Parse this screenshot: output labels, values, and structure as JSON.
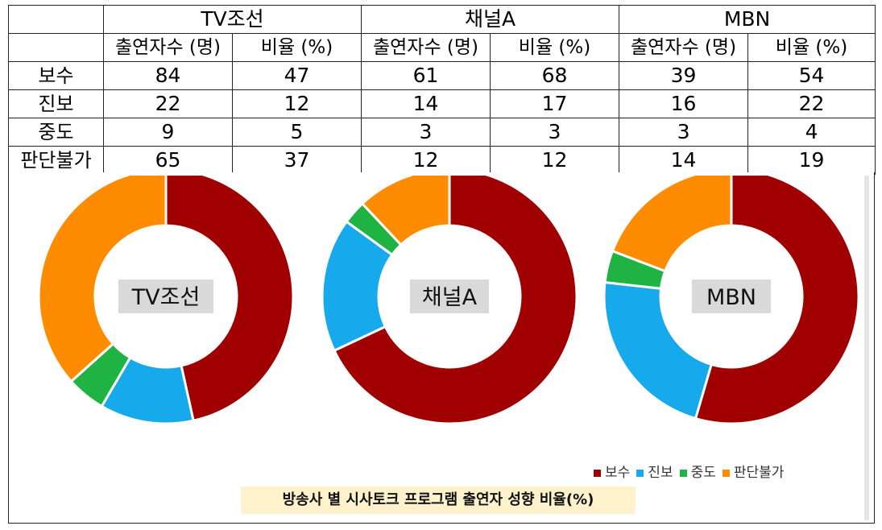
{
  "table": {
    "channels": [
      "TV조선",
      "채널A",
      "MBN"
    ],
    "sub_headers": [
      "출연자수 (명)",
      "비율 (%)"
    ],
    "rows": [
      {
        "label": "보수",
        "values": [
          "84",
          "47",
          "61",
          "68",
          "39",
          "54"
        ]
      },
      {
        "label": "진보",
        "values": [
          "22",
          "12",
          "14",
          "17",
          "16",
          "22"
        ]
      },
      {
        "label": "중도",
        "values": [
          "9",
          "5",
          "3",
          "3",
          "3",
          "4"
        ]
      },
      {
        "label": "판단불가",
        "values": [
          "65",
          "37",
          "12",
          "12",
          "14",
          "19"
        ]
      }
    ]
  },
  "chart_data": {
    "type": "pie",
    "style": "donut",
    "title": "방송사 별 시사토크 프로그램 출연자 성향 비율(%)",
    "categories": [
      "보수",
      "진보",
      "중도",
      "판단불가"
    ],
    "colors": [
      "#a00000",
      "#16a9ec",
      "#1fb344",
      "#ff8c00"
    ],
    "legend_position": "bottom-right",
    "charts": [
      {
        "label": "TV조선",
        "values": [
          47,
          12,
          5,
          37
        ]
      },
      {
        "label": "채널A",
        "values": [
          68,
          17,
          3,
          12
        ]
      },
      {
        "label": "MBN",
        "values": [
          54,
          22,
          4,
          19
        ]
      }
    ]
  }
}
